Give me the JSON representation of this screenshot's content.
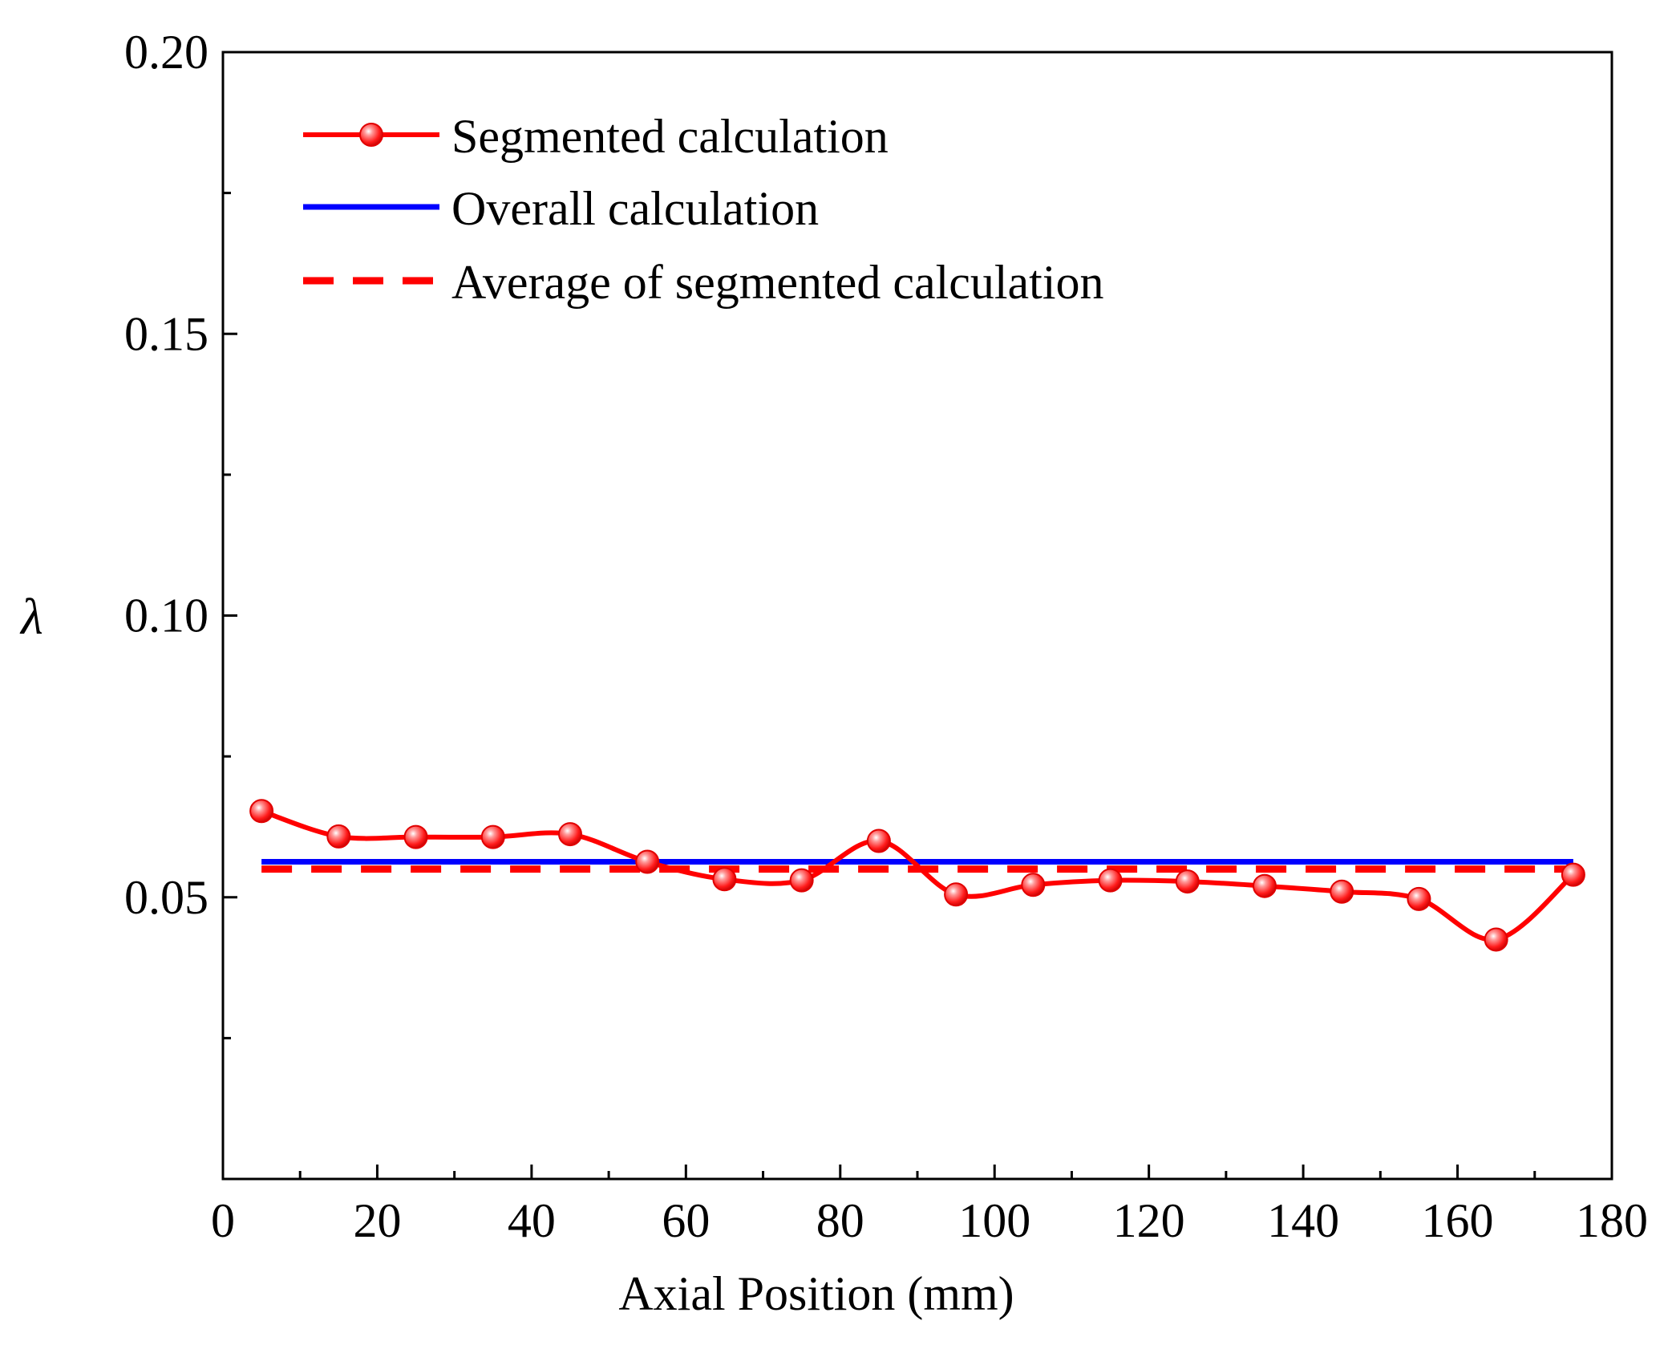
{
  "chart_data": {
    "type": "line",
    "title": "",
    "xlabel": "Axial Position (mm)",
    "ylabel": "λ",
    "xlim": [
      0,
      180
    ],
    "ylim": [
      0.0,
      0.2
    ],
    "x_ticks": [
      0,
      20,
      40,
      60,
      80,
      100,
      120,
      140,
      160,
      180
    ],
    "x_tick_labels": [
      "0",
      "20",
      "40",
      "60",
      "80",
      "100",
      "120",
      "140",
      "160",
      "180"
    ],
    "y_ticks": [
      0.05,
      0.1,
      0.15,
      0.2
    ],
    "y_tick_labels": [
      "0.05",
      "0.10",
      "0.15",
      "0.20"
    ],
    "grid": false,
    "legend_position": "top-left",
    "series": [
      {
        "name": "Segmented calculation",
        "style": "smooth line with circle markers",
        "color": "#ff0000",
        "x": [
          5,
          15,
          25,
          35,
          45,
          55,
          65,
          75,
          85,
          95,
          105,
          115,
          125,
          135,
          145,
          155,
          165,
          175
        ],
        "y": [
          0.0653,
          0.0608,
          0.0607,
          0.0607,
          0.0612,
          0.0563,
          0.0532,
          0.053,
          0.06,
          0.0505,
          0.0522,
          0.053,
          0.0528,
          0.052,
          0.051,
          0.0497,
          0.0425,
          0.054
        ]
      },
      {
        "name": "Overall calculation",
        "style": "solid line",
        "color": "#0000ff",
        "x": [
          5,
          175
        ],
        "y": [
          0.0563,
          0.0563
        ]
      },
      {
        "name": "Average of segmented calculation",
        "style": "dashed line",
        "color": "#ff0000",
        "x": [
          5,
          175
        ],
        "y": [
          0.055,
          0.055
        ]
      }
    ]
  }
}
